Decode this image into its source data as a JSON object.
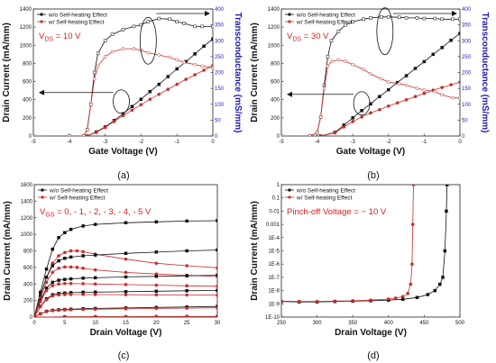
{
  "figure": {
    "panels": [
      "(a)",
      "(b)",
      "(c)",
      "(d)"
    ]
  },
  "colors": {
    "series_a": "#111111",
    "series_b": "#cc2b2b",
    "right_axis": "#1c1cb4",
    "annotation": "#d42020"
  },
  "chart_data": [
    {
      "type": "line",
      "panel_label": "(a)",
      "xlabel": "Gate Voltage (V)",
      "ylabel": "Drain Current (mA/mm)",
      "y2label": "Transconductance (mS/mm)",
      "xlim": [
        -5,
        0
      ],
      "ylim": [
        0,
        1400
      ],
      "y2lim": [
        0,
        400
      ],
      "x_ticks": [
        "-5",
        "-4",
        "-3",
        "-2",
        "-1",
        "0"
      ],
      "y_ticks": [
        "0",
        "200",
        "400",
        "600",
        "800",
        "1000",
        "1200",
        "1400"
      ],
      "y2_ticks": [
        "0",
        "50",
        "100",
        "150",
        "200",
        "250",
        "300",
        "350",
        "400"
      ],
      "annotation": {
        "prefix": "V",
        "sub": "DS",
        "suffix": " = 10 V"
      },
      "legend": [
        "w/o Self-heating Effect",
        "w/ Self-heating Effect"
      ],
      "series": [
        {
          "name": "w/o Self-heating Effect",
          "axis": "left",
          "x": [
            -3.5,
            -3.25,
            -3.0,
            -2.75,
            -2.5,
            -2.25,
            -2.0,
            -1.75,
            -1.5,
            -1.25,
            -1.0,
            -0.75,
            -0.5,
            -0.25,
            0.0
          ],
          "y": [
            0,
            45,
            100,
            170,
            245,
            325,
            405,
            490,
            570,
            655,
            740,
            820,
            905,
            990,
            1070
          ]
        },
        {
          "name": "w/ Self-heating Effect",
          "axis": "left",
          "x": [
            -3.5,
            -3.25,
            -3.0,
            -2.75,
            -2.5,
            -2.25,
            -2.0,
            -1.75,
            -1.5,
            -1.25,
            -1.0,
            -0.75,
            -0.5,
            -0.25,
            0.0
          ],
          "y": [
            0,
            40,
            95,
            160,
            225,
            285,
            345,
            405,
            460,
            515,
            570,
            625,
            675,
            725,
            775
          ]
        },
        {
          "name": "w/o Self-heating Effect",
          "axis": "right",
          "x": [
            -5.0,
            -4.0,
            -3.6,
            -3.5,
            -3.4,
            -3.3,
            -3.2,
            -3.0,
            -2.8,
            -2.5,
            -2.2,
            -2.0,
            -1.8,
            -1.5,
            -1.2,
            -1.0,
            -0.8,
            -0.5,
            -0.3,
            0.0
          ],
          "y": [
            0,
            0,
            0,
            20,
            100,
            200,
            260,
            300,
            320,
            335,
            345,
            350,
            360,
            370,
            368,
            360,
            355,
            345,
            345,
            345
          ]
        },
        {
          "name": "w/ Self-heating Effect",
          "axis": "right",
          "x": [
            -5.0,
            -4.0,
            -3.6,
            -3.5,
            -3.4,
            -3.3,
            -3.2,
            -3.0,
            -2.8,
            -2.5,
            -2.2,
            -2.0,
            -1.8,
            -1.5,
            -1.2,
            -1.0,
            -0.8,
            -0.5,
            -0.3,
            0.0
          ],
          "y": [
            0,
            0,
            0,
            20,
            100,
            180,
            220,
            250,
            265,
            275,
            275,
            270,
            262,
            255,
            248,
            240,
            232,
            225,
            220,
            215
          ]
        }
      ]
    },
    {
      "type": "line",
      "panel_label": "(b)",
      "xlabel": "Gate Voltage (V)",
      "ylabel": "Drain Current (mA/mm)",
      "y2label": "Transconductance (mS/mm)",
      "xlim": [
        -5,
        0
      ],
      "ylim": [
        0,
        1400
      ],
      "y2lim": [
        0,
        400
      ],
      "x_ticks": [
        "-5",
        "-4",
        "-3",
        "-2",
        "-1",
        "0"
      ],
      "y_ticks": [
        "0",
        "200",
        "400",
        "600",
        "800",
        "1000",
        "1200",
        "1400"
      ],
      "y2_ticks": [
        "0",
        "50",
        "100",
        "150",
        "200",
        "250",
        "300",
        "350",
        "400"
      ],
      "annotation": {
        "prefix": "V",
        "sub": "DS",
        "suffix": " = 30 V"
      },
      "legend": [
        "w/o Self-heating Effect",
        "w/ Self-heating Effect"
      ],
      "series": [
        {
          "name": "w/o Self-heating Effect",
          "axis": "left",
          "x": [
            -3.9,
            -3.5,
            -3.25,
            -3.0,
            -2.75,
            -2.5,
            -2.25,
            -2.0,
            -1.75,
            -1.5,
            -1.25,
            -1.0,
            -0.75,
            -0.5,
            -0.25,
            0.0
          ],
          "y": [
            0,
            40,
            120,
            200,
            280,
            355,
            435,
            510,
            590,
            665,
            745,
            820,
            900,
            975,
            1055,
            1130
          ]
        },
        {
          "name": "w/ Self-heating Effect",
          "axis": "left",
          "x": [
            -3.9,
            -3.5,
            -3.25,
            -3.0,
            -2.75,
            -2.5,
            -2.25,
            -2.0,
            -1.75,
            -1.5,
            -1.25,
            -1.0,
            -0.75,
            -0.5,
            -0.25,
            0.0
          ],
          "y": [
            0,
            35,
            100,
            160,
            210,
            255,
            290,
            330,
            365,
            400,
            435,
            470,
            505,
            535,
            565,
            595
          ]
        },
        {
          "name": "w/o Self-heating Effect",
          "axis": "right",
          "x": [
            -5.0,
            -4.2,
            -4.0,
            -3.9,
            -3.8,
            -3.7,
            -3.6,
            -3.4,
            -3.2,
            -3.0,
            -2.7,
            -2.5,
            -2.2,
            -2.0,
            -1.7,
            -1.5,
            -1.2,
            -1.0,
            -0.7,
            -0.5,
            -0.2,
            0.0
          ],
          "y": [
            0,
            0,
            10,
            60,
            160,
            250,
            300,
            330,
            350,
            360,
            368,
            372,
            375,
            375,
            374,
            372,
            372,
            370,
            370,
            368,
            368,
            368
          ]
        },
        {
          "name": "w/ Self-heating Effect",
          "axis": "right",
          "x": [
            -5.0,
            -4.2,
            -4.0,
            -3.9,
            -3.8,
            -3.7,
            -3.6,
            -3.4,
            -3.2,
            -3.0,
            -2.7,
            -2.5,
            -2.2,
            -2.0,
            -1.7,
            -1.5,
            -1.2,
            -1.0,
            -0.7,
            -0.5,
            -0.2,
            0.0
          ],
          "y": [
            0,
            0,
            10,
            60,
            150,
            220,
            235,
            240,
            235,
            225,
            210,
            195,
            180,
            170,
            165,
            160,
            150,
            145,
            140,
            130,
            120,
            120
          ]
        }
      ]
    },
    {
      "type": "line",
      "panel_label": "(c)",
      "xlabel": "Drain Voltage (V)",
      "ylabel": "Drain Current (mA/mm)",
      "xlim": [
        0,
        30
      ],
      "ylim": [
        0,
        1600
      ],
      "x_ticks": [
        "0",
        "5",
        "10",
        "15",
        "20",
        "25",
        "30"
      ],
      "y_ticks": [
        "0",
        "200",
        "400",
        "600",
        "800",
        "1000",
        "1200",
        "1400",
        "1600"
      ],
      "annotation": {
        "prefix": "V",
        "sub": "GS",
        "suffix": " = 0, - 1, - 2, - 3, - 4, - 5 V"
      },
      "legend": [
        "w/o Self-heating Effect",
        "w/ Self-heating Effect"
      ],
      "series": [
        {
          "name": "w/o Self-heating Effect",
          "group": 0,
          "x": [
            0,
            1,
            2,
            3,
            4,
            5,
            6,
            8,
            10,
            15,
            20,
            25,
            30
          ],
          "y": [
            0,
            300,
            580,
            820,
            960,
            1020,
            1060,
            1100,
            1120,
            1140,
            1150,
            1160,
            1165
          ]
        },
        {
          "name": "w/ Self-heating Effect",
          "group": 0,
          "x": [
            0,
            1,
            2,
            3,
            4,
            5,
            6,
            7,
            8,
            10,
            15,
            20,
            25,
            30
          ],
          "y": [
            0,
            250,
            480,
            650,
            740,
            780,
            800,
            800,
            790,
            760,
            700,
            650,
            620,
            595
          ]
        },
        {
          "name": "w/o Self-heating Effect",
          "group": 1,
          "x": [
            0,
            1,
            2,
            3,
            4,
            5,
            6,
            8,
            10,
            15,
            20,
            25,
            30
          ],
          "y": [
            0,
            260,
            480,
            620,
            680,
            710,
            725,
            740,
            750,
            770,
            785,
            800,
            810
          ]
        },
        {
          "name": "w/ Self-heating Effect",
          "group": 1,
          "x": [
            0,
            1,
            2,
            3,
            4,
            5,
            6,
            7,
            8,
            10,
            15,
            20,
            25,
            30
          ],
          "y": [
            0,
            230,
            420,
            540,
            590,
            605,
            605,
            600,
            590,
            570,
            540,
            520,
            505,
            490
          ]
        },
        {
          "name": "w/o Self-heating Effect",
          "group": 2,
          "x": [
            0,
            1,
            2,
            3,
            4,
            5,
            6,
            8,
            10,
            15,
            20,
            25,
            30
          ],
          "y": [
            0,
            200,
            350,
            420,
            445,
            455,
            462,
            470,
            475,
            485,
            492,
            498,
            505
          ]
        },
        {
          "name": "w/ Self-heating Effect",
          "group": 2,
          "x": [
            0,
            1,
            2,
            3,
            4,
            5,
            6,
            8,
            10,
            15,
            20,
            25,
            30
          ],
          "y": [
            0,
            185,
            320,
            380,
            400,
            405,
            405,
            403,
            400,
            393,
            385,
            378,
            372
          ]
        },
        {
          "name": "w/o Self-heating Effect",
          "group": 3,
          "x": [
            0,
            1,
            2,
            3,
            4,
            5,
            6,
            8,
            10,
            15,
            20,
            25,
            30
          ],
          "y": [
            0,
            130,
            220,
            270,
            285,
            290,
            295,
            300,
            302,
            307,
            312,
            318,
            322
          ]
        },
        {
          "name": "w/ Self-heating Effect",
          "group": 3,
          "x": [
            0,
            1,
            2,
            3,
            4,
            5,
            6,
            8,
            10,
            15,
            20,
            25,
            30
          ],
          "y": [
            0,
            125,
            210,
            255,
            268,
            272,
            273,
            273,
            272,
            270,
            268,
            266,
            264
          ]
        },
        {
          "name": "w/o Self-heating Effect",
          "group": 4,
          "x": [
            0,
            1,
            2,
            3,
            4,
            5,
            6,
            8,
            10,
            15,
            20,
            25,
            30
          ],
          "y": [
            0,
            40,
            70,
            82,
            88,
            92,
            95,
            100,
            104,
            110,
            116,
            122,
            128
          ]
        },
        {
          "name": "w/ Self-heating Effect",
          "group": 4,
          "x": [
            0,
            1,
            2,
            3,
            4,
            5,
            6,
            8,
            10,
            15,
            20,
            25,
            30
          ],
          "y": [
            0,
            38,
            66,
            78,
            83,
            86,
            88,
            92,
            95,
            100,
            104,
            108,
            112
          ]
        },
        {
          "name": "w/o Self-heating Effect",
          "group": 5,
          "x": [
            0,
            5,
            10,
            15,
            20,
            25,
            30
          ],
          "y": [
            0,
            2,
            3,
            4,
            5,
            6,
            7
          ]
        },
        {
          "name": "w/ Self-heating Effect",
          "group": 5,
          "x": [
            0,
            5,
            10,
            15,
            20,
            25,
            30
          ],
          "y": [
            0,
            2,
            3,
            4,
            5,
            6,
            7
          ]
        }
      ]
    },
    {
      "type": "line",
      "panel_label": "(d)",
      "xlabel": "Drain Voltage (V)",
      "ylabel": "Drain Current (mA/mm)",
      "xlim": [
        250,
        500
      ],
      "ylim": [
        1e-10,
        1
      ],
      "yscale": "log",
      "x_ticks": [
        "250",
        "300",
        "350",
        "400",
        "450",
        "500"
      ],
      "y_ticks": [
        "1E-10",
        "1E-9",
        "1E-8",
        "1E-7",
        "1E-6",
        "1E-5",
        "1E-4",
        "0.001",
        "0.01",
        "0.1",
        "1"
      ],
      "annotation": {
        "prefix": "Pinch-off Voltage = − 10 V",
        "sub": "",
        "suffix": ""
      },
      "legend": [
        "w/o Self-heating Effect",
        "w/ Self-heating Effect"
      ],
      "series": [
        {
          "name": "w/o Self-heating Effect",
          "x": [
            250,
            275,
            300,
            325,
            350,
            375,
            400,
            420,
            440,
            455,
            465,
            472,
            476,
            479,
            481,
            482
          ],
          "y": [
            1.5e-09,
            1.4e-09,
            1.4e-09,
            1.5e-09,
            1.6e-09,
            1.7e-09,
            1.9e-09,
            2.2e-09,
            3e-09,
            5e-09,
            1e-08,
            3e-08,
            1e-07,
            1e-05,
            0.01,
            1
          ]
        },
        {
          "name": "w/ Self-heating Effect",
          "x": [
            250,
            275,
            300,
            325,
            350,
            375,
            400,
            410,
            420,
            427,
            431,
            433,
            434,
            435
          ],
          "y": [
            1.6e-09,
            1.5e-09,
            1.5e-09,
            1.6e-09,
            1.7e-09,
            1.9e-09,
            2.3e-09,
            2.7e-09,
            3.5e-09,
            6e-09,
            3e-08,
            1e-06,
            0.001,
            1
          ]
        }
      ]
    }
  ]
}
